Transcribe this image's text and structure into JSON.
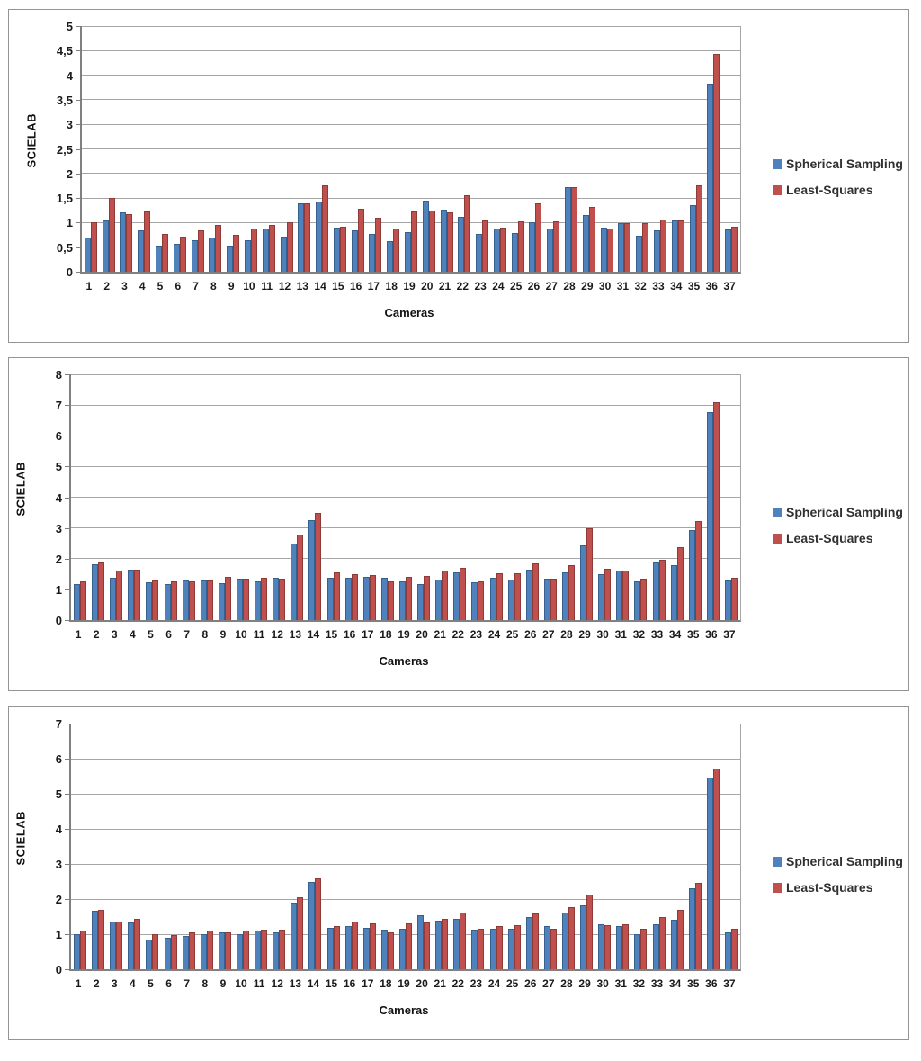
{
  "page": {
    "background": "#ffffff"
  },
  "colors": {
    "series1_fill": "#4F81BD",
    "series1_border": "#36618E",
    "series2_fill": "#C0504D",
    "series2_border": "#8E3B38",
    "gridline": "#a6a6a6",
    "axis": "#808080"
  },
  "chart_data": [
    {
      "type": "bar",
      "title": "",
      "ylabel": "SCIELAB",
      "xlabel": "Cameras",
      "ylim": [
        0,
        5
      ],
      "ytick_step": 0.5,
      "ytick_labels": [
        "0",
        "0,5",
        "1",
        "1,5",
        "2",
        "2,5",
        "3",
        "3,5",
        "4",
        "4,5",
        "5"
      ],
      "grid": true,
      "legend_position": "right",
      "categories": [
        "1",
        "2",
        "3",
        "4",
        "5",
        "6",
        "7",
        "8",
        "9",
        "10",
        "11",
        "12",
        "13",
        "14",
        "15",
        "16",
        "17",
        "18",
        "19",
        "20",
        "21",
        "22",
        "23",
        "24",
        "25",
        "26",
        "27",
        "28",
        "29",
        "30",
        "31",
        "32",
        "33",
        "34",
        "35",
        "36",
        "37"
      ],
      "series": [
        {
          "name": "Spherical Sampling",
          "color": "#4F81BD",
          "values": [
            0.7,
            1.05,
            1.2,
            0.85,
            0.53,
            0.56,
            0.65,
            0.7,
            0.53,
            0.65,
            0.87,
            0.72,
            1.4,
            1.42,
            0.9,
            0.85,
            0.77,
            0.63,
            0.8,
            1.45,
            1.27,
            1.12,
            0.77,
            0.88,
            0.78,
            1.0,
            0.88,
            1.72,
            1.15,
            0.89,
            0.98,
            0.74,
            0.84,
            1.05,
            1.35,
            3.82,
            0.86
          ]
        },
        {
          "name": "Least-Squares",
          "color": "#C0504D",
          "values": [
            1.0,
            1.5,
            1.17,
            1.23,
            0.77,
            0.72,
            0.85,
            0.96,
            0.75,
            0.87,
            0.96,
            1.0,
            1.4,
            1.75,
            0.92,
            1.28,
            1.1,
            0.87,
            1.23,
            1.25,
            1.2,
            1.55,
            1.05,
            0.9,
            1.03,
            1.39,
            1.02,
            1.72,
            1.32,
            0.88,
            0.98,
            0.98,
            1.07,
            1.05,
            1.76,
            4.43,
            0.91
          ]
        }
      ]
    },
    {
      "type": "bar",
      "title": "",
      "ylabel": "SCIELAB",
      "xlabel": "Cameras",
      "ylim": [
        0,
        8
      ],
      "ytick_step": 1,
      "ytick_labels": [
        "0",
        "1",
        "2",
        "3",
        "4",
        "5",
        "6",
        "7",
        "8"
      ],
      "grid": true,
      "legend_position": "right",
      "categories": [
        "1",
        "2",
        "3",
        "4",
        "5",
        "6",
        "7",
        "8",
        "9",
        "10",
        "11",
        "12",
        "13",
        "14",
        "15",
        "16",
        "17",
        "18",
        "19",
        "20",
        "21",
        "22",
        "23",
        "24",
        "25",
        "26",
        "27",
        "28",
        "29",
        "30",
        "31",
        "32",
        "33",
        "34",
        "35",
        "36",
        "37"
      ],
      "series": [
        {
          "name": "Spherical Sampling",
          "color": "#4F81BD",
          "values": [
            1.17,
            1.83,
            1.39,
            1.64,
            1.22,
            1.17,
            1.29,
            1.29,
            1.19,
            1.34,
            1.27,
            1.38,
            2.5,
            3.24,
            1.37,
            1.38,
            1.41,
            1.38,
            1.25,
            1.17,
            1.32,
            1.56,
            1.22,
            1.37,
            1.32,
            1.63,
            1.34,
            1.56,
            2.44,
            1.48,
            1.61,
            1.27,
            1.89,
            1.78,
            2.93,
            6.78,
            1.29
          ]
        },
        {
          "name": "Least-Squares",
          "color": "#C0504D",
          "values": [
            1.25,
            1.87,
            1.6,
            1.64,
            1.29,
            1.25,
            1.25,
            1.29,
            1.41,
            1.34,
            1.38,
            1.34,
            2.77,
            3.5,
            1.56,
            1.48,
            1.46,
            1.25,
            1.4,
            1.43,
            1.6,
            1.7,
            1.27,
            1.53,
            1.51,
            1.85,
            1.34,
            1.8,
            3.0,
            1.66,
            1.61,
            1.34,
            1.97,
            2.36,
            3.22,
            7.1,
            1.39
          ]
        }
      ]
    },
    {
      "type": "bar",
      "title": "",
      "ylabel": "SCIELAB",
      "xlabel": "Cameras",
      "ylim": [
        0,
        7
      ],
      "ytick_step": 1,
      "ytick_labels": [
        "0",
        "1",
        "2",
        "3",
        "4",
        "5",
        "6",
        "7"
      ],
      "grid": true,
      "legend_position": "right",
      "categories": [
        "1",
        "2",
        "3",
        "4",
        "5",
        "6",
        "7",
        "8",
        "9",
        "10",
        "11",
        "12",
        "13",
        "14",
        "15",
        "16",
        "17",
        "18",
        "19",
        "20",
        "21",
        "22",
        "23",
        "24",
        "25",
        "26",
        "27",
        "28",
        "29",
        "30",
        "31",
        "32",
        "33",
        "34",
        "35",
        "36",
        "37"
      ],
      "series": [
        {
          "name": "Spherical Sampling",
          "color": "#4F81BD",
          "values": [
            1.0,
            1.67,
            1.37,
            1.33,
            0.85,
            0.89,
            0.95,
            1.0,
            1.04,
            1.0,
            1.1,
            1.04,
            1.89,
            2.48,
            1.17,
            1.22,
            1.19,
            1.14,
            1.15,
            1.53,
            1.38,
            1.43,
            1.12,
            1.15,
            1.15,
            1.48,
            1.23,
            1.62,
            1.82,
            1.29,
            1.23,
            1.0,
            1.29,
            1.4,
            2.3,
            5.46,
            1.05
          ]
        },
        {
          "name": "Least-Squares",
          "color": "#C0504D",
          "values": [
            1.1,
            1.7,
            1.37,
            1.43,
            1.0,
            0.98,
            1.05,
            1.1,
            1.04,
            1.1,
            1.14,
            1.14,
            2.05,
            2.59,
            1.23,
            1.37,
            1.3,
            1.04,
            1.31,
            1.34,
            1.44,
            1.62,
            1.15,
            1.23,
            1.26,
            1.58,
            1.15,
            1.76,
            2.12,
            1.26,
            1.29,
            1.15,
            1.48,
            1.69,
            2.45,
            5.72,
            1.15
          ]
        }
      ]
    }
  ]
}
